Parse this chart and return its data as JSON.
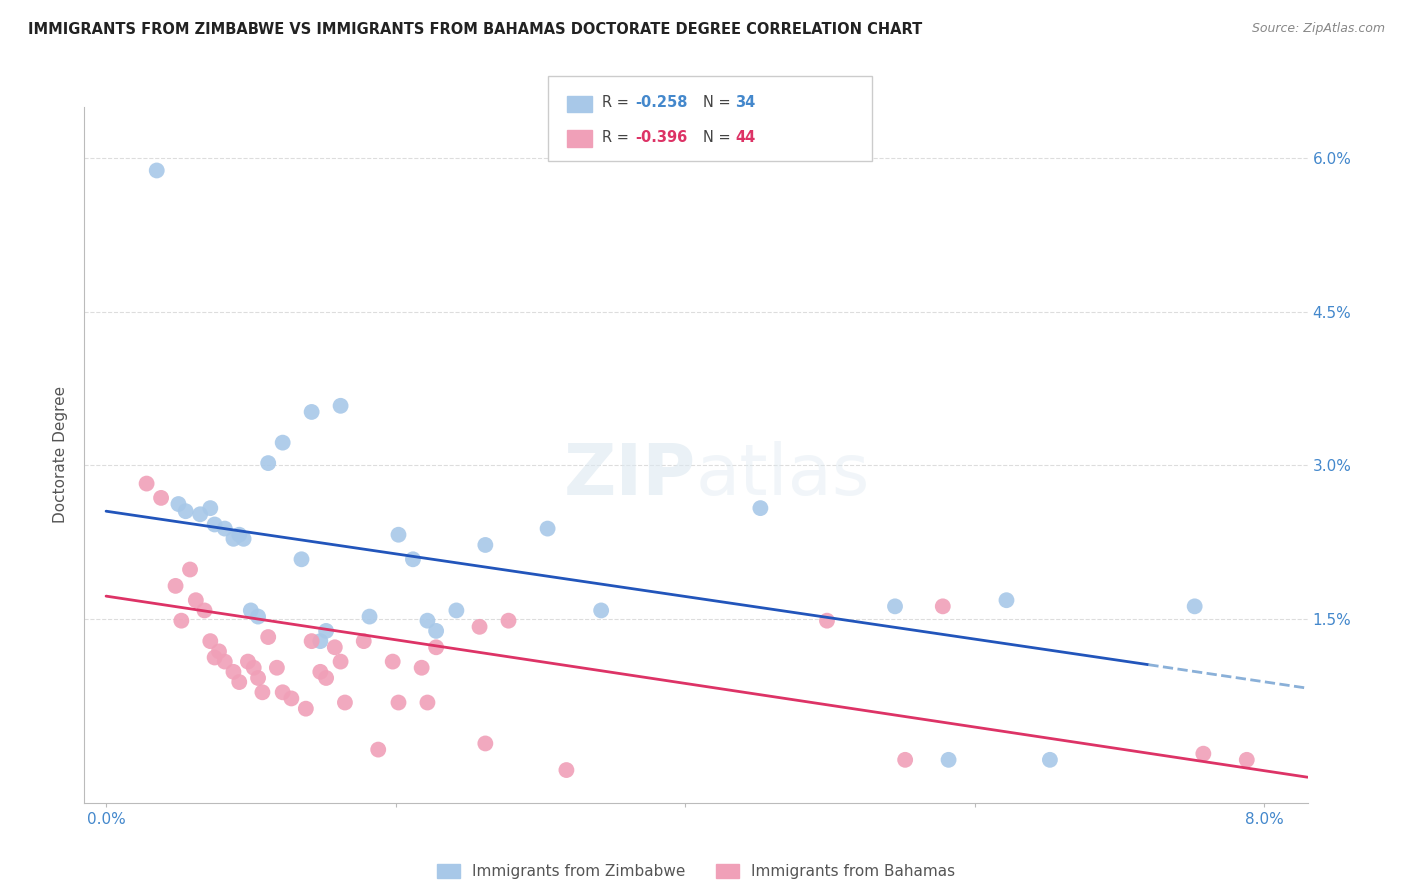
{
  "title": "IMMIGRANTS FROM ZIMBABWE VS IMMIGRANTS FROM BAHAMAS DOCTORATE DEGREE CORRELATION CHART",
  "source": "Source: ZipAtlas.com",
  "ylabel": "Doctorate Degree",
  "x_tick_labels": [
    "0.0%",
    "",
    "",
    "",
    "8.0%"
  ],
  "x_tick_values": [
    0.0,
    2.0,
    4.0,
    6.0,
    8.0
  ],
  "y_tick_labels": [
    "1.5%",
    "3.0%",
    "4.5%",
    "6.0%"
  ],
  "y_tick_values": [
    1.5,
    3.0,
    4.5,
    6.0
  ],
  "xlim": [
    -0.15,
    8.3
  ],
  "ylim": [
    -0.3,
    6.5
  ],
  "legend_labels_bottom": [
    "Immigrants from Zimbabwe",
    "Immigrants from Bahamas"
  ],
  "color_blue": "#a8c8e8",
  "color_pink": "#f0a0b8",
  "color_blue_line": "#2255bb",
  "color_pink_line": "#dd3366",
  "color_blue_dashed": "#8ab0d8",
  "color_text": "#4488cc",
  "color_grid": "#dddddd",
  "legend_r_blue": "-0.258",
  "legend_n_blue": "34",
  "legend_r_pink": "-0.396",
  "legend_n_pink": "44",
  "zimbabwe_x": [
    0.35,
    0.5,
    0.55,
    0.65,
    0.72,
    0.75,
    0.82,
    0.88,
    0.92,
    0.95,
    1.0,
    1.05,
    1.12,
    1.22,
    1.35,
    1.42,
    1.48,
    1.52,
    1.62,
    1.82,
    2.02,
    2.12,
    2.22,
    2.28,
    2.42,
    2.62,
    3.05,
    3.42,
    4.52,
    5.45,
    5.82,
    6.22,
    6.52,
    7.52
  ],
  "zimbabwe_y": [
    5.88,
    2.62,
    2.55,
    2.52,
    2.58,
    2.42,
    2.38,
    2.28,
    2.32,
    2.28,
    1.58,
    1.52,
    3.02,
    3.22,
    2.08,
    3.52,
    1.28,
    1.38,
    3.58,
    1.52,
    2.32,
    2.08,
    1.48,
    1.38,
    1.58,
    2.22,
    2.38,
    1.58,
    2.58,
    1.62,
    0.12,
    1.68,
    0.12,
    1.62
  ],
  "bahamas_x": [
    0.28,
    0.38,
    0.48,
    0.52,
    0.58,
    0.62,
    0.68,
    0.72,
    0.75,
    0.78,
    0.82,
    0.88,
    0.92,
    0.98,
    1.02,
    1.05,
    1.08,
    1.12,
    1.18,
    1.22,
    1.28,
    1.38,
    1.42,
    1.48,
    1.52,
    1.58,
    1.62,
    1.65,
    1.78,
    1.88,
    1.98,
    2.02,
    2.18,
    2.22,
    2.28,
    2.58,
    2.62,
    2.78,
    3.18,
    4.98,
    5.52,
    5.78,
    7.58,
    7.88
  ],
  "bahamas_y": [
    2.82,
    2.68,
    1.82,
    1.48,
    1.98,
    1.68,
    1.58,
    1.28,
    1.12,
    1.18,
    1.08,
    0.98,
    0.88,
    1.08,
    1.02,
    0.92,
    0.78,
    1.32,
    1.02,
    0.78,
    0.72,
    0.62,
    1.28,
    0.98,
    0.92,
    1.22,
    1.08,
    0.68,
    1.28,
    0.22,
    1.08,
    0.68,
    1.02,
    0.68,
    1.22,
    1.42,
    0.28,
    1.48,
    0.02,
    1.48,
    0.12,
    1.62,
    0.18,
    0.12
  ],
  "blue_line_x0": 0.0,
  "blue_line_y0": 2.55,
  "blue_line_x1": 7.2,
  "blue_line_y1": 1.05,
  "blue_dash_x0": 7.2,
  "blue_dash_y0": 1.05,
  "blue_dash_x1": 8.3,
  "blue_dash_y1": 0.82,
  "pink_line_x0": 0.0,
  "pink_line_y0": 1.72,
  "pink_line_x1": 8.3,
  "pink_line_y1": -0.05
}
